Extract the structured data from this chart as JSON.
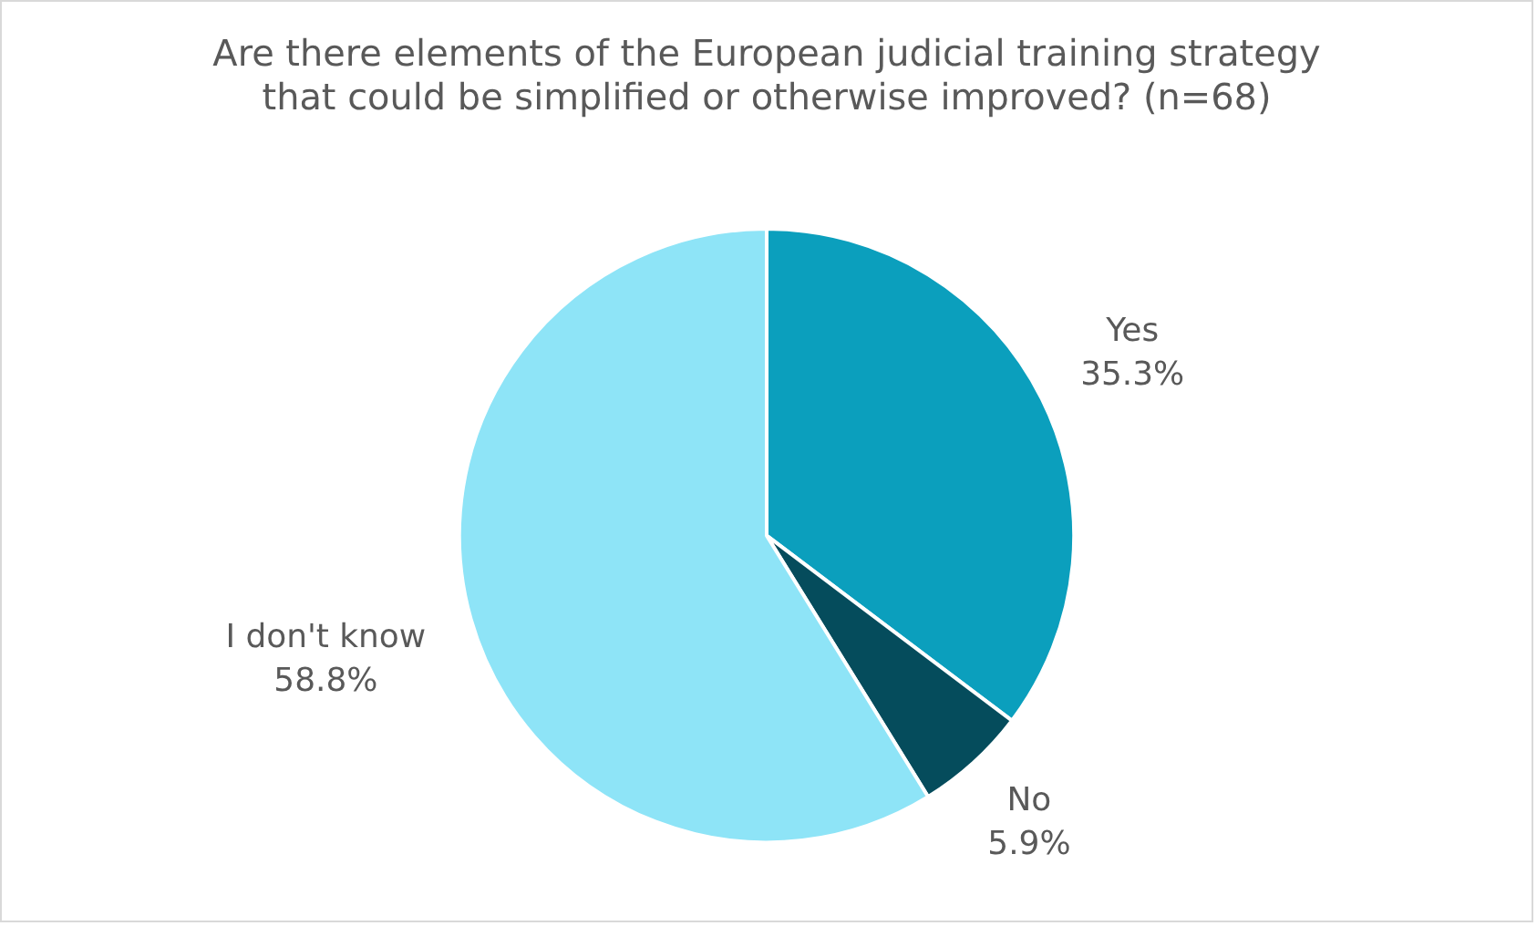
{
  "chart_data": {
    "type": "pie",
    "title": "Are there elements of the European judicial training strategy that could be simplified or otherwise improved? (n=68)",
    "categories": [
      "Yes",
      "No",
      "I don't know"
    ],
    "values": [
      35.3,
      5.9,
      58.8
    ],
    "colors": [
      "#0b9fbd",
      "#054c5c",
      "#8ee4f7"
    ],
    "value_labels": [
      "35.3%",
      "5.9%",
      "58.8%"
    ],
    "legend": false
  }
}
